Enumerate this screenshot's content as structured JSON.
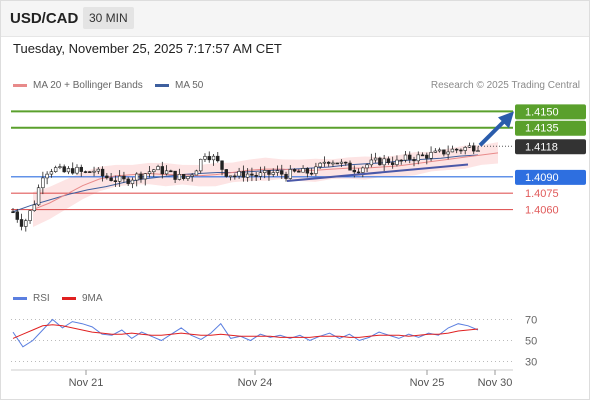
{
  "header": {
    "symbol": "USD/CAD",
    "interval": "30 MIN"
  },
  "datetime": "Tuesday, November 25, 2025 7:17:57 AM CET",
  "legend": {
    "ma20": "MA 20 + Bollinger Bands",
    "ma50": "MA 50",
    "rsi": "RSI",
    "ma9": "9MA"
  },
  "credit": "Research © 2025 Trading Central",
  "colors": {
    "resistance": "#5aa02c",
    "current": "#333333",
    "pivot": "#2e6fe0",
    "support": "#e05a5a",
    "ma20": "#e88a8a",
    "band": "#fde4e4",
    "ma50": "#3e5f9e",
    "trendline": "#4a58a8",
    "arrow": "#2a5cab",
    "rsi": "#5b7fe0",
    "rsi_ma": "#e02020"
  },
  "chart_data": [
    {
      "type": "candlestick",
      "x_labels": [
        "Nov 21",
        "Nov 24",
        "Nov 25",
        "Nov 30"
      ],
      "ylim": [
        1.4,
        1.4165
      ],
      "levels": [
        {
          "label": "1.4150",
          "value": 1.415,
          "role": "resistance"
        },
        {
          "label": "1.4135",
          "value": 1.4135,
          "role": "resistance"
        },
        {
          "label": "1.4118",
          "value": 1.4118,
          "role": "current"
        },
        {
          "label": "1.4090",
          "value": 1.409,
          "role": "pivot"
        },
        {
          "label": "1.4075",
          "value": 1.4075,
          "role": "support"
        },
        {
          "label": "1.4060",
          "value": 1.406,
          "role": "support"
        }
      ],
      "ohlc_close_path": [
        1.4058,
        1.4046,
        1.4063,
        1.4094,
        1.4098,
        1.4094,
        1.4097,
        1.4093,
        1.4096,
        1.409,
        1.4088,
        1.4086,
        1.409,
        1.4093,
        1.4097,
        1.4095,
        1.4091,
        1.4088,
        1.4096,
        1.4112,
        1.4106,
        1.4094,
        1.4091,
        1.4093,
        1.4091,
        1.4092,
        1.4094,
        1.4092,
        1.4094,
        1.4094,
        1.4096,
        1.4106,
        1.4104,
        1.4099,
        1.4097,
        1.4101,
        1.4104,
        1.4105,
        1.4103,
        1.4107,
        1.4108,
        1.411,
        1.4111,
        1.4114,
        1.4115,
        1.4117,
        1.4118
      ],
      "series": [
        {
          "name": "MA 20 + Bollinger Bands",
          "values": [
            1.406,
            1.4066,
            1.4074,
            1.4082,
            1.4088,
            1.4091,
            1.4092,
            1.4093,
            1.4092,
            1.4092,
            1.4091,
            1.4092,
            1.4094,
            1.4096,
            1.4097,
            1.4097,
            1.4096,
            1.4096,
            1.4097,
            1.4098,
            1.4098,
            1.4099,
            1.41,
            1.4102,
            1.4104,
            1.4106,
            1.4108,
            1.411,
            1.4112
          ]
        },
        {
          "name": "MA 50",
          "values": [
            1.4058,
            1.4064,
            1.4069,
            1.4074,
            1.4078,
            1.4081,
            1.4085,
            1.4088,
            1.409,
            1.4092,
            1.4093,
            1.4094,
            1.4094,
            1.4095,
            1.4096,
            1.4097,
            1.4098,
            1.4099,
            1.4101,
            1.4102,
            1.4103,
            1.4105,
            1.4106,
            1.4107,
            1.4109,
            1.411
          ]
        }
      ],
      "trendline": [
        1.4088,
        1.4105
      ],
      "arrow_target": 1.415
    },
    {
      "type": "line",
      "title": "RSI",
      "y_ticks": [
        "70",
        "50",
        "30"
      ],
      "ylim": [
        20,
        80
      ],
      "series": [
        {
          "name": "RSI",
          "values": [
            58,
            44,
            50,
            60,
            70,
            62,
            68,
            66,
            63,
            56,
            55,
            60,
            52,
            58,
            54,
            50,
            56,
            62,
            55,
            51,
            57,
            66,
            52,
            54,
            50,
            56,
            53,
            55,
            52,
            55,
            50,
            54,
            57,
            52,
            56,
            50,
            53,
            58,
            55,
            52,
            56,
            53,
            57,
            55,
            62,
            66,
            64,
            60
          ]
        },
        {
          "name": "9MA",
          "values": [
            52,
            56,
            60,
            64,
            65,
            64,
            62,
            60,
            58,
            57,
            56,
            56,
            57,
            56,
            55,
            55,
            56,
            57,
            56,
            55,
            55,
            56,
            55,
            54,
            54,
            54,
            54,
            53,
            53,
            53,
            53,
            54,
            54,
            54,
            53,
            53,
            54,
            55,
            55,
            55,
            54,
            55,
            56,
            56,
            57,
            59,
            60,
            61
          ]
        }
      ]
    }
  ]
}
